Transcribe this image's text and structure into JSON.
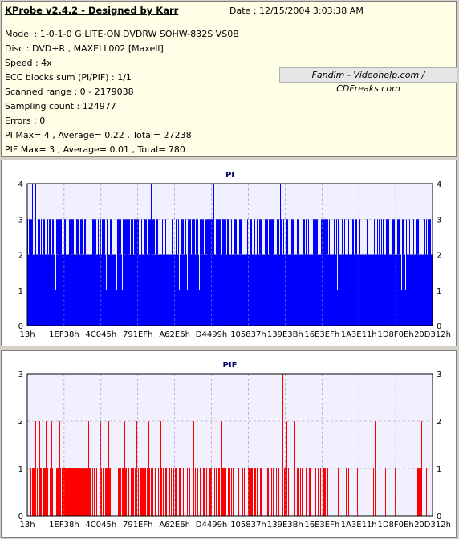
{
  "app_title": "KProbe v2.4.2 - Designed by Karr",
  "date": "Date : 12/15/2004 3:03:38 AM",
  "info_lines": [
    "Model : 1-0-1-0 G:LITE-ON DVDRW SOHW-832S  VS0B",
    "Disc : DVD+R , MAXELL002 [Maxell]",
    "Speed : 4x",
    "ECC blocks sum (PI/PIF) : 1/1",
    "Scanned range : 0 - 2179038",
    "Sampling count : 124977",
    "Errors : 0",
    "PI Max= 4 , Average= 0.22 , Total= 27238",
    "PIF Max= 3 , Average= 0.01 , Total= 780"
  ],
  "credit": "Fandim - Videohelp.com / CDFreaks.com",
  "colors": {
    "pi": "#0000ff",
    "pif": "#ff0000",
    "plot_bg": "#f0f0ff",
    "grid": "#9090a0"
  },
  "chart_data": [
    {
      "type": "bar",
      "title": "PI",
      "ylim": [
        0,
        4
      ],
      "yticks": [
        "0",
        "1",
        "2",
        "3",
        "4"
      ],
      "xticks": [
        "13h",
        "1EF38h",
        "4C045h",
        "791EFh",
        "A62E6h",
        "D4499h",
        "105837h",
        "139E3Bh",
        "16E3EFh",
        "1A3E11h",
        "1D8F0Eh",
        "20D312h"
      ],
      "grid": true,
      "baseline": 2,
      "spikes4": [
        0.005,
        0.012,
        0.02,
        0.048,
        0.305,
        0.34,
        0.46,
        0.59,
        0.625
      ],
      "dips1": [
        0.07,
        0.195,
        0.22,
        0.235,
        0.375,
        0.395,
        0.425,
        0.57,
        0.72,
        0.765,
        0.79,
        0.925,
        0.935,
        0.97
      ],
      "dense3_start": 0.0,
      "dense3_end": 0.6,
      "sparse3_density": 0.12
    },
    {
      "type": "bar",
      "title": "PIF",
      "ylim": [
        0,
        3
      ],
      "yticks": [
        "0",
        "1",
        "2",
        "3"
      ],
      "xticks": [
        "13h",
        "1EF38h",
        "4C045h",
        "791EFh",
        "A62E6h",
        "D4499h",
        "105837h",
        "139E3Bh",
        "16E3EFh",
        "1A3E11h",
        "1D8F0Eh",
        "20D312h"
      ],
      "grid": true,
      "baseline": 0,
      "spikes3": [
        0.34,
        0.63
      ],
      "solid_block": [
        0.09,
        0.155
      ],
      "dense1_start": 0.0,
      "dense1_end": 0.62,
      "dense2_positions": [
        0.02,
        0.03,
        0.045,
        0.06,
        0.08,
        0.15,
        0.18,
        0.2,
        0.24,
        0.27,
        0.3,
        0.33,
        0.36,
        0.41,
        0.48,
        0.53,
        0.55,
        0.6,
        0.64,
        0.66,
        0.72,
        0.77,
        0.82,
        0.86,
        0.9,
        0.93,
        0.96,
        0.975
      ]
    }
  ]
}
